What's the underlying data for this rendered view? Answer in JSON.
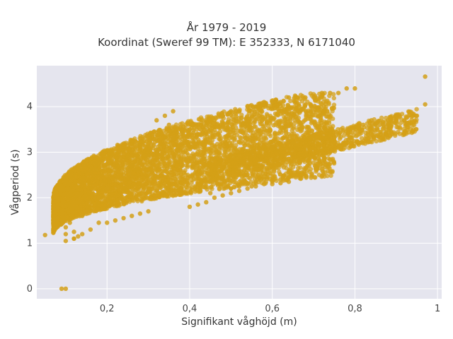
{
  "chart_data": {
    "type": "scatter",
    "title": "År 1979 - 2019",
    "subtitle": "Koordinat (Sweref 99 TM): E 352333, N 6171040",
    "xlabel": "Signifikant våghöjd (m)",
    "ylabel": "Vågperiod (s)",
    "xlim": [
      0.03,
      1.01
    ],
    "ylim": [
      -0.22,
      4.9
    ],
    "xticks": [
      "0,2",
      "0,4",
      "0,6",
      "0,8",
      "1"
    ],
    "xtick_values": [
      0.2,
      0.4,
      0.6,
      0.8,
      1.0
    ],
    "yticks": [
      "0",
      "1",
      "2",
      "3",
      "4"
    ],
    "ytick_values": [
      0,
      1,
      2,
      3,
      4
    ],
    "grid": true,
    "marker_color": "#D4A017",
    "plot_background": "#E5E5EE",
    "x": [
      0.05,
      0.07,
      0.08,
      0.1,
      0.1,
      0.11,
      0.12,
      0.14,
      0.15,
      0.16,
      0.18,
      0.2,
      0.22,
      0.24,
      0.26,
      0.28,
      0.3,
      0.32,
      0.34,
      0.36,
      0.38,
      0.4,
      0.42,
      0.44,
      0.46,
      0.48,
      0.5,
      0.52,
      0.54,
      0.56,
      0.58,
      0.6,
      0.62,
      0.64,
      0.66,
      0.68,
      0.7,
      0.72,
      0.74,
      0.76,
      0.78,
      0.8,
      0.82,
      0.84,
      0.86,
      0.88,
      0.9,
      0.92,
      0.94,
      0.97,
      0.55,
      0.6,
      0.65,
      0.7,
      0.8,
      0.85,
      0.9,
      0.95,
      0.97,
      0.45,
      0.5,
      0.55,
      0.6,
      0.62,
      0.64,
      0.5,
      0.52,
      0.54,
      0.56,
      0.58,
      0.4,
      0.42,
      0.44,
      0.46,
      0.48,
      0.5,
      0.52,
      0.54,
      0.56,
      0.58,
      0.6,
      0.62,
      0.64,
      0.66,
      0.3,
      0.28,
      0.26,
      0.24,
      0.22,
      0.2,
      0.18,
      0.16,
      0.14,
      0.12,
      0.1,
      0.12,
      0.13,
      0.35,
      0.38,
      0.42,
      0.45,
      0.48,
      0.35,
      0.32,
      0.34,
      0.36
    ],
    "y": [
      1.18,
      1.5,
      1.55,
      1.35,
      1.2,
      1.45,
      1.25,
      1.6,
      1.7,
      1.9,
      2.0,
      2.2,
      2.4,
      2.5,
      2.7,
      2.8,
      2.9,
      3.0,
      3.2,
      3.3,
      3.4,
      3.5,
      3.6,
      3.6,
      3.7,
      3.8,
      3.9,
      3.9,
      4.0,
      4.0,
      4.1,
      4.1,
      4.1,
      4.2,
      4.2,
      4.2,
      4.2,
      4.3,
      4.3,
      4.3,
      4.4,
      4.4,
      3.6,
      3.7,
      3.6,
      3.7,
      3.8,
      3.7,
      3.8,
      4.66,
      3.0,
      3.1,
      3.2,
      3.3,
      3.5,
      3.6,
      3.7,
      3.8,
      4.05,
      2.1,
      2.2,
      2.25,
      2.3,
      2.32,
      2.35,
      2.2,
      2.25,
      2.3,
      2.35,
      2.4,
      1.8,
      1.85,
      1.9,
      2.0,
      2.05,
      2.1,
      2.15,
      2.2,
      2.25,
      2.3,
      2.35,
      2.4,
      2.45,
      2.5,
      1.7,
      1.65,
      1.6,
      1.55,
      1.5,
      1.45,
      1.45,
      1.3,
      1.2,
      1.1,
      1.05,
      1.1,
      1.15,
      2.1,
      2.2,
      2.3,
      2.35,
      2.4,
      3.6,
      3.7,
      3.8,
      3.9
    ]
  }
}
